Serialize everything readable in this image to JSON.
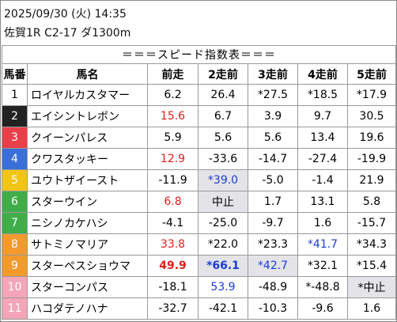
{
  "header": {
    "date": "2025/09/30 (火) 14:35",
    "race": "佐賀1R C2-17 ダ1300m"
  },
  "table": {
    "title": "＝＝＝スピード指数表＝＝＝",
    "columns": [
      "馬番",
      "馬名",
      "前走",
      "2走前",
      "3走前",
      "4走前",
      "5走前"
    ],
    "rows": [
      {
        "num": "1",
        "name": "ロイヤルカスタマー",
        "frame_color": "#ffffff",
        "num_color": "#000000",
        "speeds": [
          "6.2",
          "26.4",
          "*27.5",
          "*18.5",
          "*17.9"
        ],
        "speed_colors": [
          null,
          null,
          null,
          null,
          null
        ],
        "speed_bg": [
          null,
          null,
          null,
          null,
          null
        ],
        "speed_bold": [
          false,
          false,
          false,
          false,
          false
        ]
      },
      {
        "num": "2",
        "name": "エイシントレボン",
        "frame_color": "#222222",
        "num_color": "#ffffff",
        "speeds": [
          "15.6",
          "6.7",
          "3.9",
          "9.7",
          "30.5"
        ],
        "speed_colors": [
          "#e0201c",
          null,
          null,
          null,
          null
        ],
        "speed_bg": [
          null,
          null,
          null,
          null,
          null
        ],
        "speed_bold": [
          false,
          false,
          false,
          false,
          false
        ]
      },
      {
        "num": "3",
        "name": "クイーンパレス",
        "frame_color": "#e8404a",
        "num_color": "#ffffff",
        "speeds": [
          "5.9",
          "5.6",
          "5.6",
          "13.4",
          "19.6"
        ],
        "speed_colors": [
          null,
          null,
          null,
          null,
          null
        ],
        "speed_bg": [
          null,
          null,
          null,
          null,
          null
        ],
        "speed_bold": [
          false,
          false,
          false,
          false,
          false
        ]
      },
      {
        "num": "4",
        "name": "クワスタッキー",
        "frame_color": "#3a6fd8",
        "num_color": "#ffffff",
        "speeds": [
          "12.9",
          "-33.6",
          "-14.7",
          "-27.4",
          "-19.9"
        ],
        "speed_colors": [
          "#e0201c",
          null,
          null,
          null,
          null
        ],
        "speed_bg": [
          null,
          null,
          null,
          null,
          null
        ],
        "speed_bold": [
          false,
          false,
          false,
          false,
          false
        ]
      },
      {
        "num": "5",
        "name": "ユウトザイースト",
        "frame_color": "#f2c418",
        "num_color": "#ffffff",
        "speeds": [
          "-11.9",
          "*39.0",
          "-5.0",
          "-1.4",
          "21.9"
        ],
        "speed_colors": [
          null,
          "#1a3cd8",
          null,
          null,
          null
        ],
        "speed_bg": [
          null,
          "#e4e4e8",
          null,
          null,
          null
        ],
        "speed_bold": [
          false,
          false,
          false,
          false,
          false
        ]
      },
      {
        "num": "6",
        "name": "スターウイン",
        "frame_color": "#3fae49",
        "num_color": "#ffffff",
        "speeds": [
          "6.8",
          "中止",
          "1.7",
          "13.1",
          "5.8"
        ],
        "speed_colors": [
          "#e0201c",
          null,
          null,
          null,
          null
        ],
        "speed_bg": [
          null,
          "#e4e4e8",
          null,
          null,
          null
        ],
        "speed_bold": [
          false,
          false,
          false,
          false,
          false
        ]
      },
      {
        "num": "7",
        "name": "ニシノカケハシ",
        "frame_color": "#3fae49",
        "num_color": "#ffffff",
        "speeds": [
          "-4.1",
          "-25.0",
          "-9.7",
          "1.6",
          "-15.7"
        ],
        "speed_colors": [
          null,
          null,
          null,
          null,
          null
        ],
        "speed_bg": [
          null,
          null,
          null,
          null,
          null
        ],
        "speed_bold": [
          false,
          false,
          false,
          false,
          false
        ]
      },
      {
        "num": "8",
        "name": "サトミノマリア",
        "frame_color": "#f39a2e",
        "num_color": "#ffffff",
        "speeds": [
          "33.8",
          "*22.0",
          "*23.3",
          "*41.7",
          "*34.3"
        ],
        "speed_colors": [
          "#e0201c",
          null,
          null,
          "#1a3cd8",
          null
        ],
        "speed_bg": [
          null,
          null,
          null,
          null,
          null
        ],
        "speed_bold": [
          false,
          false,
          false,
          false,
          false
        ]
      },
      {
        "num": "9",
        "name": "スターペスショウマ",
        "frame_color": "#f39a2e",
        "num_color": "#ffffff",
        "speeds": [
          "49.9",
          "*66.1",
          "*42.7",
          "*32.1",
          "*15.4"
        ],
        "speed_colors": [
          "#e0201c",
          "#1a3cd8",
          "#1a3cd8",
          null,
          null
        ],
        "speed_bg": [
          null,
          "#e4e4e8",
          "#e4e4e8",
          null,
          null
        ],
        "speed_bold": [
          true,
          true,
          false,
          false,
          false
        ]
      },
      {
        "num": "10",
        "name": "スターコンパス",
        "frame_color": "#f4a6b8",
        "num_color": "#ffffff",
        "speeds": [
          "-18.1",
          "53.9",
          "-48.9",
          "*-48.8",
          "*中止"
        ],
        "speed_colors": [
          null,
          "#1a3cd8",
          null,
          null,
          null
        ],
        "speed_bg": [
          null,
          null,
          null,
          null,
          "#e4e4e8"
        ],
        "speed_bold": [
          false,
          false,
          false,
          false,
          false
        ]
      },
      {
        "num": "11",
        "name": "ハコダテノハナ",
        "frame_color": "#f4a6b8",
        "num_color": "#ffffff",
        "speeds": [
          "-32.7",
          "-42.1",
          "-10.3",
          "-9.6",
          "1.6"
        ],
        "speed_colors": [
          null,
          null,
          null,
          null,
          null
        ],
        "speed_bg": [
          null,
          null,
          null,
          null,
          null
        ],
        "speed_bold": [
          false,
          false,
          false,
          false,
          false
        ]
      }
    ]
  }
}
